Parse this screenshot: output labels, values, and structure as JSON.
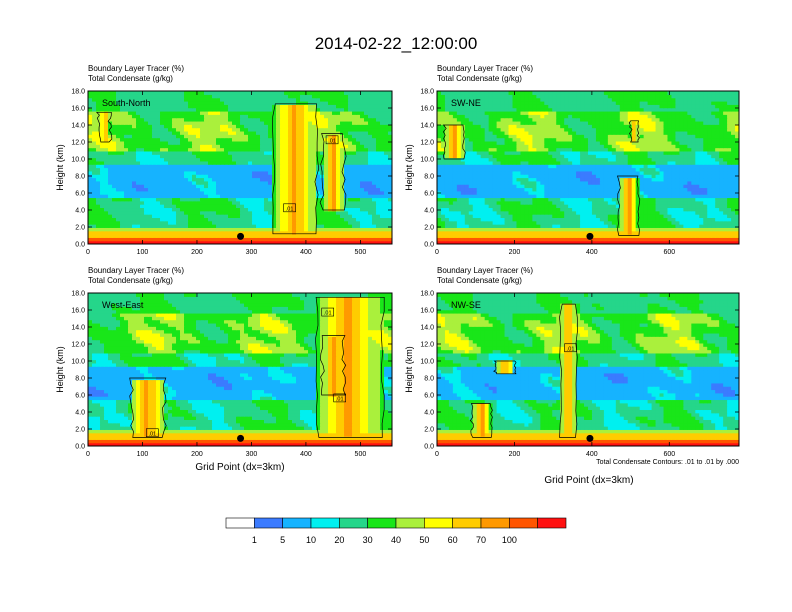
{
  "figure": {
    "title": "2014-02-22_12:00:00",
    "contour_note": "Total Condensate Contours: .01 to .01 by .000",
    "xlabel": "Grid Point (dx=3km)"
  },
  "colors": {
    "background": "#ffffff",
    "axis": "#000000",
    "contour": "#000000",
    "marker": "#000000"
  },
  "colorbar": {
    "levels": [
      1,
      5,
      10,
      20,
      30,
      40,
      50,
      60,
      70,
      100
    ],
    "labels": [
      "1",
      "5",
      "10",
      "20",
      "30",
      "40",
      "50",
      "60",
      "70",
      "100"
    ],
    "colors": [
      "#ffffff",
      "#3b7bff",
      "#16b3ff",
      "#00f0f0",
      "#25d68a",
      "#19e619",
      "#aaf03c",
      "#ffff00",
      "#ffcc00",
      "#ff9900",
      "#ff5500",
      "#ff1111"
    ]
  },
  "chart_data": [
    {
      "id": "south-north",
      "type": "heatmap",
      "label": "South-North",
      "title_line1": "Boundary Layer Tracer   (%)",
      "title_line2": "Total Condensate   (g/kg)",
      "ylabel": "Height (km)",
      "xlabel": "",
      "xlim": [
        0,
        558
      ],
      "ylim": [
        0,
        18
      ],
      "xticks": [
        0,
        100,
        200,
        300,
        400,
        500
      ],
      "yticks": [
        0,
        2,
        4,
        6,
        8,
        10,
        12,
        14,
        16,
        18
      ],
      "ytick_labels": [
        "0.0",
        "2.0",
        "4.0",
        "6.0",
        "8.0",
        "10.0",
        "12.0",
        "14.0",
        "16.0",
        "18.0"
      ],
      "marker_x": 280,
      "contour_labels": [
        {
          "text": ".01",
          "x": 370,
          "y": 4.2
        },
        {
          "text": ".01",
          "x": 448,
          "y": 12.2
        }
      ],
      "clouds": [
        [
          340,
          420,
          1.2,
          16.5
        ],
        [
          430,
          470,
          4,
          13
        ],
        [
          20,
          40,
          12,
          15.5
        ]
      ],
      "seed": 3
    },
    {
      "id": "sw-ne",
      "type": "heatmap",
      "label": "SW-NE",
      "title_line1": "Boundary Layer Tracer   (%)",
      "title_line2": "Total Condensate   (g/kg)",
      "ylabel": "Height (km)",
      "xlabel": "",
      "xlim": [
        0,
        780
      ],
      "ylim": [
        0,
        18
      ],
      "xticks": [
        0,
        200,
        400,
        600
      ],
      "yticks": [
        0,
        2,
        4,
        6,
        8,
        10,
        12,
        14,
        16,
        18
      ],
      "ytick_labels": [
        "0.0",
        "2.0",
        "4.0",
        "6.0",
        "8.0",
        "10.0",
        "12.0",
        "14.0",
        "16.0",
        "18.0"
      ],
      "marker_x": 395,
      "contour_labels": [],
      "clouds": [
        [
          470,
          520,
          1,
          8
        ],
        [
          500,
          520,
          12,
          14.5
        ],
        [
          20,
          70,
          10,
          14
        ]
      ],
      "seed": 7
    },
    {
      "id": "west-east",
      "type": "heatmap",
      "label": "West-East",
      "title_line1": "Boundary Layer Tracer   (%)",
      "title_line2": "Total Condensate   (g/kg)",
      "ylabel": "Height (km)",
      "xlabel": "Grid Point (dx=3km)",
      "xlim": [
        0,
        558
      ],
      "ylim": [
        0,
        18
      ],
      "xticks": [
        0,
        100,
        200,
        300,
        400,
        500
      ],
      "yticks": [
        0,
        2,
        4,
        6,
        8,
        10,
        12,
        14,
        16,
        18
      ],
      "ytick_labels": [
        "0.0",
        "2.0",
        "4.0",
        "6.0",
        "8.0",
        "10.0",
        "12.0",
        "14.0",
        "16.0",
        "18.0"
      ],
      "marker_x": 280,
      "contour_labels": [
        {
          "text": ".01",
          "x": 118,
          "y": 1.5
        },
        {
          "text": ".01",
          "x": 462,
          "y": 5.6
        },
        {
          "text": ".01",
          "x": 440,
          "y": 15.7
        }
      ],
      "clouds": [
        [
          420,
          540,
          1,
          17.5
        ],
        [
          80,
          140,
          1,
          8
        ],
        [
          430,
          470,
          6,
          13
        ]
      ],
      "seed": 11
    },
    {
      "id": "nw-se",
      "type": "heatmap",
      "label": "NW-SE",
      "title_line1": "Boundary Layer Tracer   (%)",
      "title_line2": "Total Condensate   (g/kg)",
      "ylabel": "Height (km)",
      "xlabel": "",
      "xlim": [
        0,
        780
      ],
      "ylim": [
        0,
        18
      ],
      "xticks": [
        0,
        200,
        400,
        600
      ],
      "yticks": [
        0,
        2,
        4,
        6,
        8,
        10,
        12,
        14,
        16,
        18
      ],
      "ytick_labels": [
        "0.0",
        "2.0",
        "4.0",
        "6.0",
        "8.0",
        "10.0",
        "12.0",
        "14.0",
        "16.0",
        "18.0"
      ],
      "marker_x": 395,
      "contour_labels": [
        {
          "text": ".01",
          "x": 345,
          "y": 11.5
        }
      ],
      "clouds": [
        [
          320,
          360,
          1,
          16.7
        ],
        [
          90,
          140,
          1,
          5
        ],
        [
          150,
          200,
          8.5,
          10
        ]
      ],
      "seed": 19
    }
  ]
}
